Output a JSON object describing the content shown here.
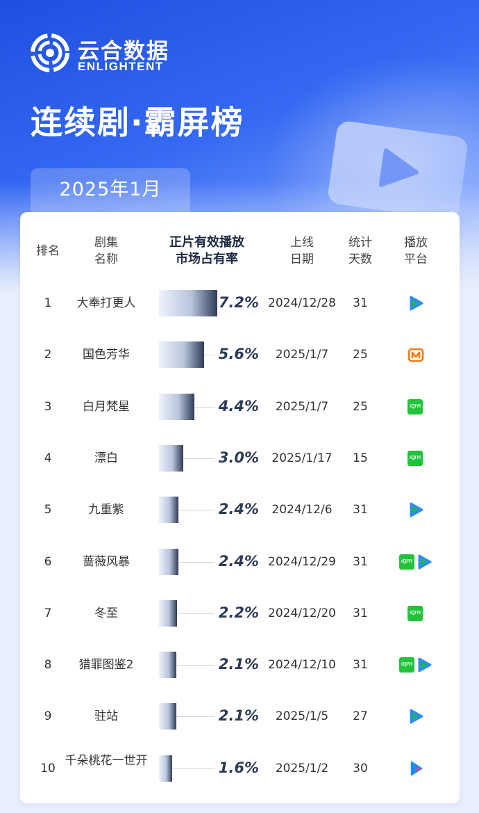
{
  "brand": {
    "name_cn": "云合数据",
    "name_en": "ENLIGHTENT",
    "color": "#2456e6"
  },
  "title": "连续剧·霸屏榜",
  "period": "2025年1月",
  "columns": {
    "rank": "排名",
    "drama": [
      "剧集",
      "名称"
    ],
    "share": [
      "正片有效播放",
      "市场占有率"
    ],
    "date": [
      "上线",
      "日期"
    ],
    "days": [
      "统计",
      "天数"
    ],
    "platform": [
      "播放",
      "平台"
    ]
  },
  "chart_data": {
    "type": "bar",
    "title": "连续剧·霸屏榜",
    "categories": [
      "大奉打更人",
      "国色芳华",
      "白月梵星",
      "漂白",
      "九重紫",
      "蔷薇风暴",
      "冬至",
      "猎罪图鉴2",
      "驻站",
      "千朵桃花一世开"
    ],
    "values": [
      7.2,
      5.6,
      4.4,
      3.0,
      2.4,
      2.4,
      2.2,
      2.1,
      2.1,
      1.6
    ],
    "unit": "%",
    "ylim": [
      0,
      7.2
    ]
  },
  "rows": [
    {
      "rank": "1",
      "drama": "大奉打更人",
      "share": "7.2%",
      "date": "2024/12/28",
      "days": "31",
      "platforms": [
        "tencent-video-icon"
      ]
    },
    {
      "rank": "2",
      "drama": "国色芳华",
      "share": "5.6%",
      "date": "2025/1/7",
      "days": "25",
      "platforms": [
        "mango-tv-icon"
      ]
    },
    {
      "rank": "3",
      "drama": "白月梵星",
      "share": "4.4%",
      "date": "2025/1/7",
      "days": "25",
      "platforms": [
        "iqiyi-icon"
      ]
    },
    {
      "rank": "4",
      "drama": "漂白",
      "share": "3.0%",
      "date": "2025/1/17",
      "days": "15",
      "platforms": [
        "iqiyi-icon"
      ]
    },
    {
      "rank": "5",
      "drama": "九重紫",
      "share": "2.4%",
      "date": "2024/12/6",
      "days": "31",
      "platforms": [
        "tencent-video-icon"
      ]
    },
    {
      "rank": "6",
      "drama": "蔷薇风暴",
      "share": "2.4%",
      "date": "2024/12/29",
      "days": "31",
      "platforms": [
        "iqiyi-icon",
        "tencent-video-icon"
      ]
    },
    {
      "rank": "7",
      "drama": "冬至",
      "share": "2.2%",
      "date": "2024/12/20",
      "days": "31",
      "platforms": [
        "iqiyi-icon"
      ]
    },
    {
      "rank": "8",
      "drama": "猎罪图鉴2",
      "share": "2.1%",
      "date": "2024/12/10",
      "days": "31",
      "platforms": [
        "iqiyi-icon",
        "tencent-video-icon"
      ]
    },
    {
      "rank": "9",
      "drama": "驻站",
      "share": "2.1%",
      "date": "2025/1/5",
      "days": "27",
      "platforms": [
        "tencent-video-icon"
      ]
    },
    {
      "rank": "10",
      "drama": "千朵桃花一世开",
      "share": "1.6%",
      "date": "2025/1/2",
      "days": "30",
      "platforms": [
        "youku-icon"
      ]
    }
  ],
  "icons": {
    "iqiyi_text": "iQIYI",
    "colors": {
      "tencent": "#19b955",
      "tencent_blue": "#2f8cf0",
      "mango": "#f07a1a",
      "iqiyi": "#22c33a",
      "youku_blue": "#1e8cf5",
      "youku_pink": "#f03d7a"
    }
  }
}
